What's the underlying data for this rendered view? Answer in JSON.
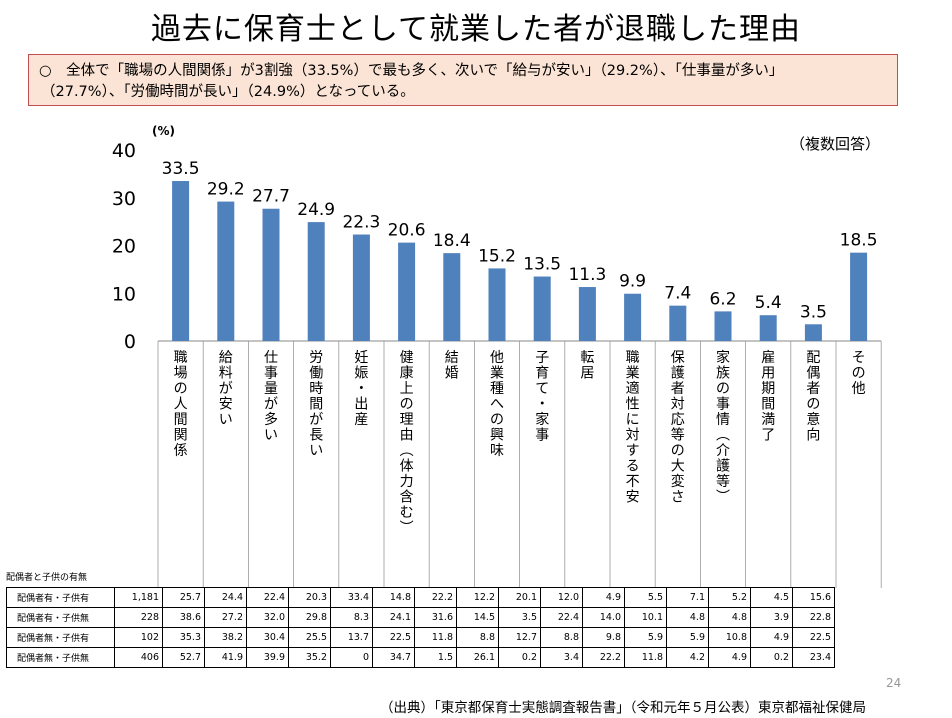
{
  "title": "過去に保育士として就業した者が退職した理由",
  "summary": {
    "line1": "○　全体で「職場の人間関係」が3割強（33.5%）で最も多く、次いで「給与が安い」（29.2%）、「仕事量が多い」",
    "line2": "（27.7%）、「労働時間が長い」（24.9%）となっている。"
  },
  "chart_data": {
    "type": "bar",
    "unit_label": "(%)",
    "note": "（複数回答）",
    "categories": [
      "職場の人間関係",
      "給料が安い",
      "仕事量が多い",
      "労働時間が長い",
      "妊娠・出産",
      "健康上の理由（体力含む）",
      "結婚",
      "他業種への興味",
      "子育て・家事",
      "転居",
      "職業適性に対する不安",
      "保護者対応等の大変さ",
      "家族の事情（介護等）",
      "雇用期間満了",
      "配偶者の意向",
      "その他"
    ],
    "values": [
      33.5,
      29.2,
      27.7,
      24.9,
      22.3,
      20.6,
      18.4,
      15.2,
      13.5,
      11.3,
      9.9,
      7.4,
      6.2,
      5.4,
      3.5,
      18.5
    ],
    "yticks": [
      "40",
      "30",
      "20",
      "10",
      "0"
    ],
    "ylim": [
      0,
      40
    ],
    "bar_color": "#4f81bd"
  },
  "table": {
    "caption": "配偶者と子供の有無",
    "rows": [
      {
        "label": "配偶者有・子供有",
        "n": "1,181",
        "values": [
          "25.7",
          "24.4",
          "22.4",
          "20.3",
          "33.4",
          "14.8",
          "22.2",
          "12.2",
          "20.1",
          "12.0",
          "4.9",
          "5.5",
          "7.1",
          "5.2",
          "4.5",
          "15.6"
        ]
      },
      {
        "label": "配偶者有・子供無",
        "n": "228",
        "values": [
          "38.6",
          "27.2",
          "32.0",
          "29.8",
          "8.3",
          "24.1",
          "31.6",
          "14.5",
          "3.5",
          "22.4",
          "14.0",
          "10.1",
          "4.8",
          "4.8",
          "3.9",
          "22.8"
        ]
      },
      {
        "label": "配偶者無・子供有",
        "n": "102",
        "values": [
          "35.3",
          "38.2",
          "30.4",
          "25.5",
          "13.7",
          "22.5",
          "11.8",
          "8.8",
          "12.7",
          "8.8",
          "9.8",
          "5.9",
          "5.9",
          "10.8",
          "4.9",
          "22.5"
        ]
      },
      {
        "label": "配偶者無・子供無",
        "n": "406",
        "values": [
          "52.7",
          "41.9",
          "39.9",
          "35.2",
          "0",
          "34.7",
          "1.5",
          "26.1",
          "0.2",
          "3.4",
          "22.2",
          "11.8",
          "4.2",
          "4.9",
          "0.2",
          "23.4"
        ]
      }
    ]
  },
  "page_number": "24",
  "source": "（出典）「東京都保育士実態調査報告書」（令和元年５月公表）東京都福祉保健局"
}
